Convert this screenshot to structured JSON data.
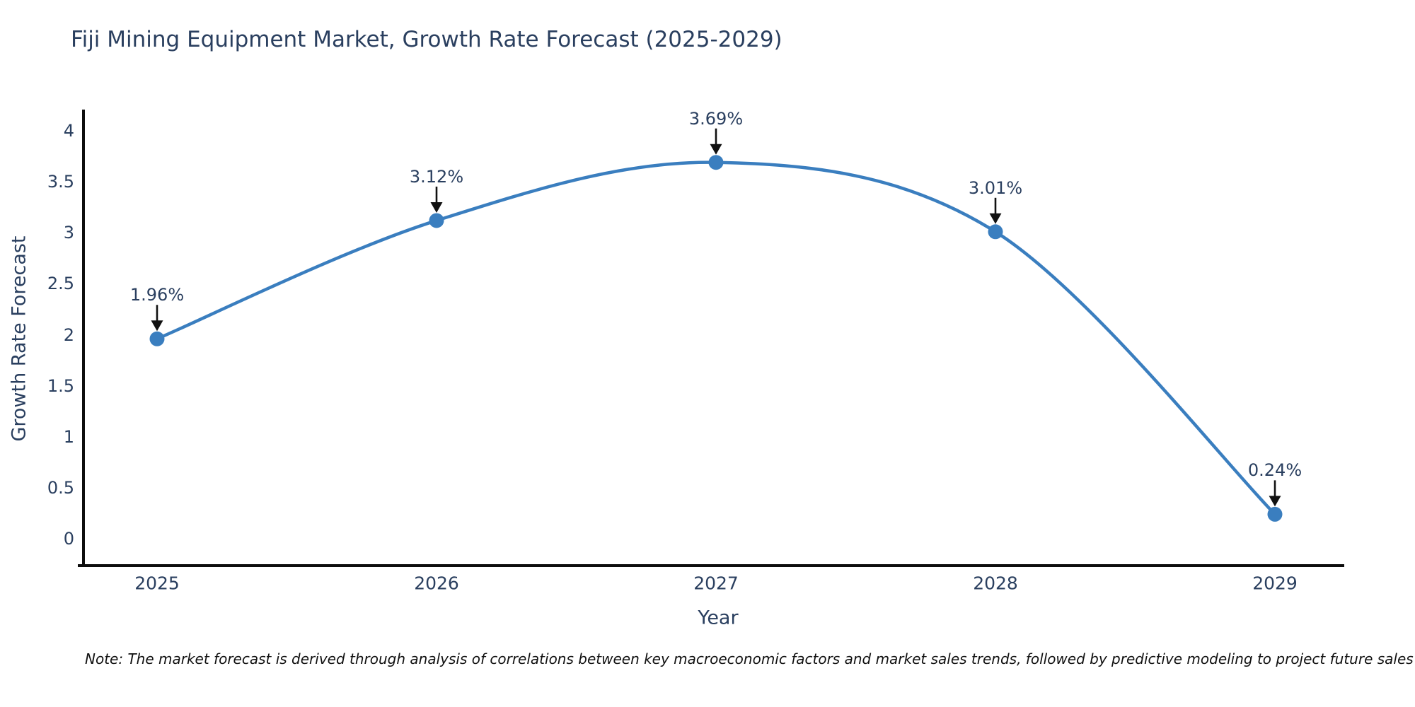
{
  "title": "Fiji Mining Equipment Market, Growth Rate Forecast (2025-2029)",
  "note": "Note: The market forecast is derived through analysis of correlations between key macroeconomic factors and market sales trends, followed by predictive modeling to project future sales",
  "chart_data": {
    "type": "line",
    "title": "Fiji Mining Equipment Market, Growth Rate Forecast (2025-2029)",
    "x": [
      2025,
      2026,
      2027,
      2028,
      2029
    ],
    "values": [
      1.96,
      3.12,
      3.69,
      3.01,
      0.24
    ],
    "point_labels": [
      "1.96%",
      "3.12%",
      "3.69%",
      "3.01%",
      "0.24%"
    ],
    "xlabel": "Year",
    "ylabel": "Growth Rate Forecast",
    "ylim": [
      0,
      4
    ],
    "yticks": [
      0,
      0.5,
      1,
      1.5,
      2,
      2.5,
      3,
      3.5,
      4
    ],
    "line_shape": "spline",
    "grid": false,
    "legend": "none",
    "colors": {
      "line": "#3a7ebf",
      "marker": "#3a7ebf",
      "axis": "#0d0d0d",
      "text": "#2a3f5f",
      "arrow": "#111111"
    }
  }
}
